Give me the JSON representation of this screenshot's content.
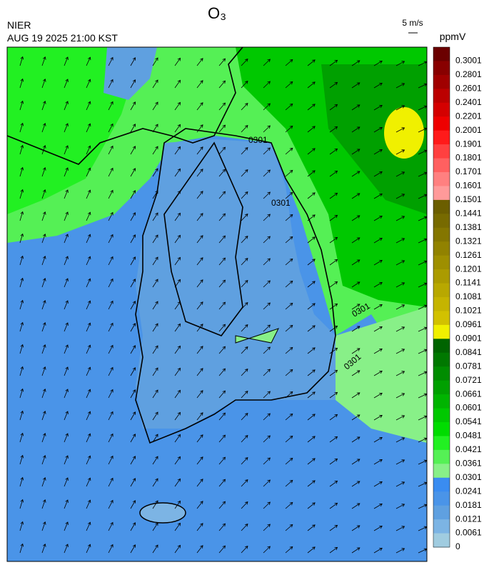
{
  "header": {
    "title": "O₃",
    "agency": "NIER",
    "datetime": "AUG 19 2025 21:00 KST",
    "vector_scale": "5 m/s"
  },
  "map": {
    "contour_labels": [
      "0301",
      "0301",
      "0301",
      "0301"
    ]
  },
  "colorbar": {
    "unit": "ppmV",
    "levels": [
      0.3001,
      0.2801,
      0.2601,
      0.2401,
      0.2201,
      0.2001,
      0.1901,
      0.1801,
      0.1701,
      0.1601,
      0.1501,
      0.1441,
      0.1381,
      0.1321,
      0.1261,
      0.1201,
      0.1141,
      0.1081,
      0.1021,
      0.0961,
      0.0901,
      0.0841,
      0.0781,
      0.0721,
      0.0661,
      0.0601,
      0.0541,
      0.0481,
      0.0421,
      0.0361,
      0.0301,
      0.0241,
      0.0181,
      0.0121,
      0.0061,
      0
    ],
    "colors": [
      "#6b0000",
      "#880000",
      "#a00000",
      "#bb0000",
      "#d40000",
      "#ee0000",
      "#ff1a1a",
      "#ff4040",
      "#ff6060",
      "#ff8080",
      "#ff9a9a",
      "#6b5e00",
      "#776a00",
      "#847600",
      "#918200",
      "#9e8f00",
      "#ab9b00",
      "#b8a800",
      "#c5b400",
      "#d2c100",
      "#f0f000",
      "#006400",
      "#007800",
      "#008c00",
      "#00a000",
      "#00b400",
      "#00c800",
      "#00dc00",
      "#22f022",
      "#55f055",
      "#88f088",
      "#3a8cf0",
      "#4a94e8",
      "#5fa0e0",
      "#7cb4e4",
      "#a0cce0"
    ]
  }
}
